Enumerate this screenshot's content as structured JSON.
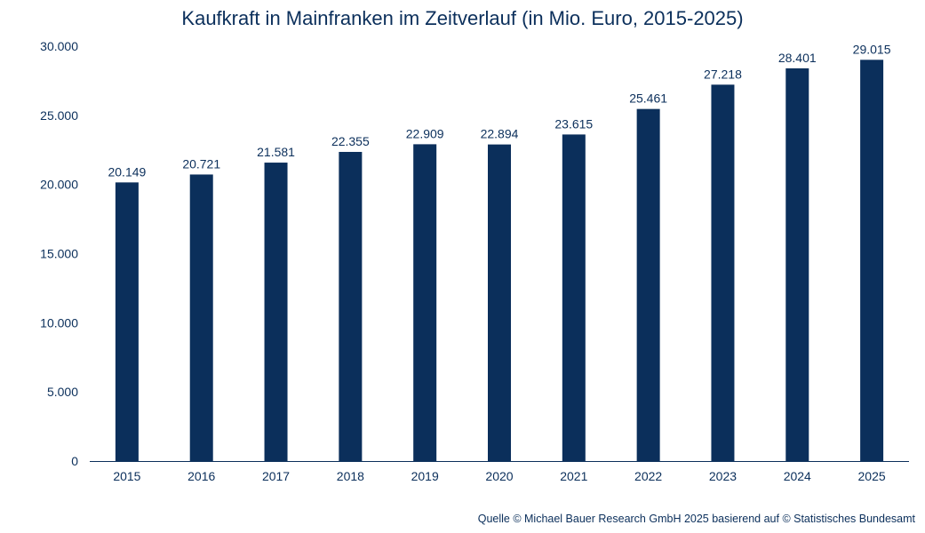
{
  "chart_data": {
    "type": "bar",
    "title": "Kaufkraft in Mainfranken im Zeitverlauf (in Mio. Euro, 2015-2025)",
    "categories": [
      "2015",
      "2016",
      "2017",
      "2018",
      "2019",
      "2020",
      "2021",
      "2022",
      "2023",
      "2024",
      "2025"
    ],
    "values": [
      20149,
      20721,
      21581,
      22355,
      22909,
      22894,
      23615,
      25461,
      27218,
      28401,
      29015
    ],
    "value_labels": [
      "20.149",
      "20.721",
      "21.581",
      "22.355",
      "22.909",
      "22.894",
      "23.615",
      "25.461",
      "27.218",
      "28.401",
      "29.015"
    ],
    "y_ticks": [
      0,
      5000,
      10000,
      15000,
      20000,
      25000,
      30000
    ],
    "y_tick_labels": [
      "0",
      "5.000",
      "10.000",
      "15.000",
      "20.000",
      "25.000",
      "30.000"
    ],
    "ylim": [
      0,
      30000
    ],
    "xlabel": "",
    "ylabel": "",
    "grid": false,
    "legend": false,
    "bar_color": "#0b2f5b",
    "text_color": "#0b2f5b"
  },
  "source": "Quelle © Michael Bauer Research GmbH 2025 basierend auf © Statistisches Bundesamt"
}
